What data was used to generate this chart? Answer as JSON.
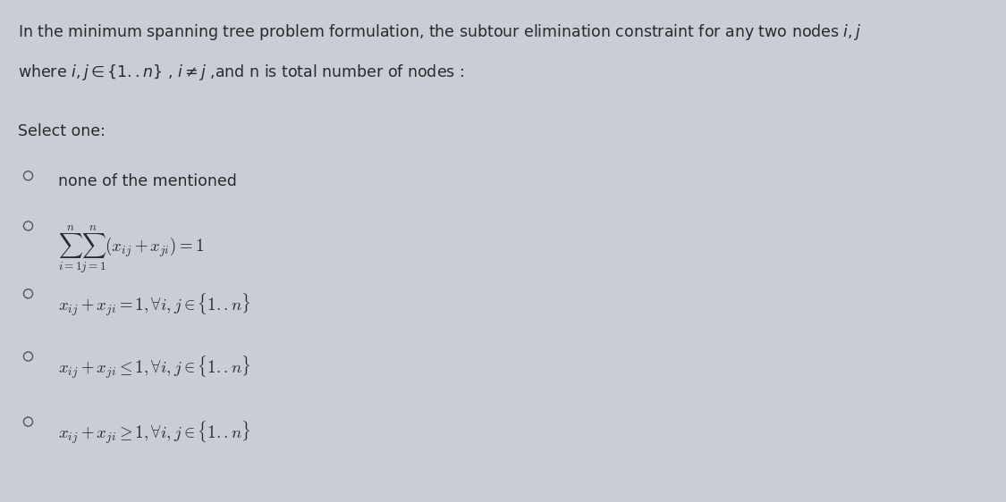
{
  "bg_color": "#c8cdd6",
  "text_color": "#2a2a2a",
  "title_line1": "In the minimum spanning tree problem formulation, the subtour elimination constraint for any two nodes $i, j$",
  "title_line2": "where $i, j \\in \\{1..n\\}$ , $i \\neq j$ ,and n is total number of nodes :",
  "select_label": "Select one:",
  "options": [
    "none of the mentioned",
    "$\\sum_{i=1}^{n}\\sum_{j=1}^{n}(x_{ij} + x_{ji}) = 1$",
    "$x_{ij} + x_{ji} = 1, \\forall i, j \\in \\{1..n\\}$",
    "$x_{ij} + x_{ji} \\leq 1, \\forall i, j \\in \\{1..n\\}$",
    "$x_{ij} + x_{ji} \\geq 1, \\forall i, j \\in \\{1..n\\}$"
  ],
  "figsize": [
    11.25,
    5.62
  ],
  "dpi": 100
}
